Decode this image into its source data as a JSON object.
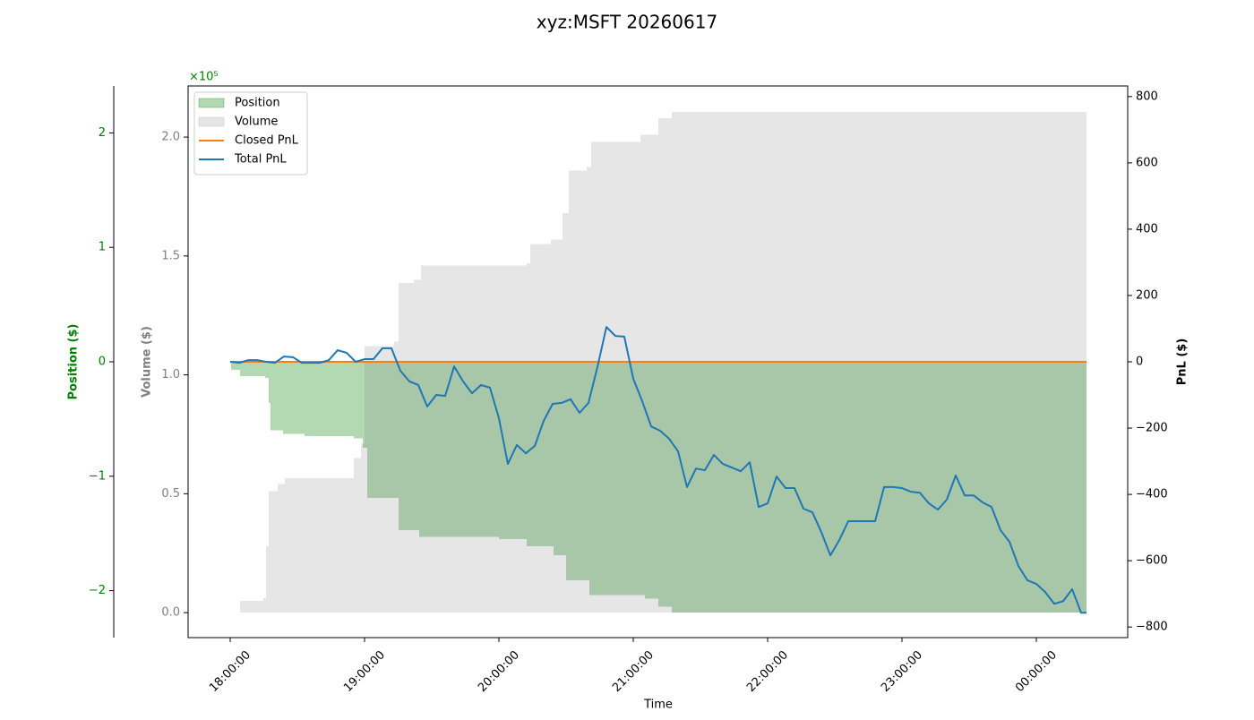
{
  "chart_data": {
    "type": "line",
    "title": "xyz:MSFT 20260617",
    "xlabel": "Time",
    "xlim": [
      "17:41:12",
      "00:40:48"
    ],
    "xticks": [
      "18:00:00",
      "19:00:00",
      "20:00:00",
      "21:00:00",
      "22:00:00",
      "23:00:00",
      "00:00:00"
    ],
    "ylabel": "Volume ($)",
    "ylabel_color": "gray",
    "ylim": [
      -0.105,
      2.215
    ],
    "yticks": [
      {
        "value": 0,
        "label": "0.0"
      },
      0.5,
      {
        "value": 1,
        "label": "1.0"
      },
      1.5,
      {
        "value": 2,
        "label": "2.0"
      }
    ],
    "y2label": "PnL ($)",
    "y2lim": [
      -832,
      832
    ],
    "y2ticks": [
      {
        "value": -800,
        "label": "−800"
      },
      {
        "value": -600,
        "label": "−600"
      },
      {
        "value": -400,
        "label": "−400"
      },
      {
        "value": -200,
        "label": "−200"
      },
      0,
      200,
      400,
      600,
      800
    ],
    "y3label": "Position ($)",
    "y3label_color": "green",
    "y3lim": [
      -2.41,
      2.41
    ],
    "y3ticks": [
      {
        "value": -2,
        "label": "−2"
      },
      {
        "value": -1,
        "label": "−1"
      },
      0,
      1,
      2
    ],
    "offset_text": "×10⁵",
    "legend": "upper left",
    "series": [
      {
        "name": "Position",
        "color": "green",
        "alpha": 0.3,
        "style": "step-area",
        "axis": "y3",
        "x": [
          "18:00:00",
          "18:00:24",
          "18:04:24",
          "18:15:36",
          "18:17:12",
          "18:18:00",
          "18:23:36",
          "18:33:12",
          "18:55:12",
          "18:59:12",
          "19:01:12",
          "19:15:12",
          "19:24:24",
          "20:00:00",
          "20:12:24",
          "20:24:24",
          "20:30:00",
          "20:40:24",
          "21:05:12",
          "21:11:12",
          "21:17:12",
          "00:22:24"
        ],
        "values": [
          0,
          -0.07,
          -0.125,
          -0.14,
          -0.36,
          -0.6,
          -0.63,
          -0.65,
          -0.67,
          -0.75,
          -1.19,
          -1.47,
          -1.53,
          -1.55,
          -1.61,
          -1.69,
          -1.91,
          -2.04,
          -2.07,
          -2.14,
          -2.19,
          -2.19
        ]
      },
      {
        "name": "Volume",
        "color": "gray",
        "alpha": 0.2,
        "style": "step-area",
        "axis": "y",
        "x": [
          "18:00:00",
          "18:04:24",
          "18:14:48",
          "18:16:00",
          "18:17:12",
          "18:21:12",
          "18:24:24",
          "18:55:12",
          "18:58:24",
          "19:00:00",
          "19:13:12",
          "19:15:12",
          "19:22:00",
          "19:25:12",
          "20:12:24",
          "20:14:00",
          "20:23:12",
          "20:28:24",
          "20:31:12",
          "20:39:12",
          "20:41:12",
          "21:03:12",
          "21:11:12",
          "21:17:12",
          "00:22:24"
        ],
        "values": [
          0,
          0.05,
          0.06,
          0.28,
          0.51,
          0.54,
          0.565,
          0.65,
          0.71,
          1.12,
          1.14,
          1.386,
          1.4,
          1.46,
          1.47,
          1.55,
          1.57,
          1.68,
          1.86,
          1.875,
          1.98,
          2.01,
          2.08,
          2.105,
          2.105
        ]
      },
      {
        "name": "Closed PnL",
        "color": "#ff7f0e",
        "style": "line",
        "axis": "y2",
        "x": [
          "18:00:00",
          "00:22:24"
        ],
        "values": [
          0,
          0
        ]
      },
      {
        "name": "Total PnL",
        "color": "#1f77b4",
        "style": "line",
        "axis": "y2",
        "x": [
          "18:00:00",
          "18:04:00",
          "18:08:00",
          "18:12:00",
          "18:16:00",
          "18:20:00",
          "18:24:00",
          "18:28:00",
          "18:32:00",
          "18:36:00",
          "18:40:00",
          "18:44:00",
          "18:48:00",
          "18:52:00",
          "18:56:00",
          "19:00:00",
          "19:04:00",
          "19:08:00",
          "19:12:00",
          "19:16:00",
          "19:20:00",
          "19:24:00",
          "19:28:00",
          "19:32:00",
          "19:36:00",
          "19:40:00",
          "19:44:00",
          "19:48:00",
          "19:52:00",
          "19:56:00",
          "20:00:00",
          "20:04:00",
          "20:08:00",
          "20:12:00",
          "20:16:00",
          "20:20:00",
          "20:24:00",
          "20:28:00",
          "20:32:00",
          "20:36:00",
          "20:40:00",
          "20:44:00",
          "20:48:00",
          "20:52:00",
          "20:56:00",
          "21:00:00",
          "21:04:00",
          "21:08:00",
          "21:12:00",
          "21:16:00",
          "21:20:00",
          "21:24:00",
          "21:28:00",
          "21:32:00",
          "21:36:00",
          "21:40:00",
          "21:44:00",
          "21:48:00",
          "21:52:00",
          "21:56:00",
          "22:00:00",
          "22:04:00",
          "22:08:00",
          "22:12:00",
          "22:16:00",
          "22:20:00",
          "22:24:00",
          "22:28:00",
          "22:32:00",
          "22:36:00",
          "22:40:00",
          "22:44:00",
          "22:48:00",
          "22:52:00",
          "22:56:00",
          "23:00:00",
          "23:04:00",
          "23:08:00",
          "23:12:00",
          "23:16:00",
          "23:20:00",
          "23:24:00",
          "23:28:00",
          "23:32:00",
          "23:36:00",
          "23:40:00",
          "23:44:00",
          "23:48:00",
          "23:52:00",
          "23:56:00",
          "00:00:00",
          "00:04:00",
          "00:08:00",
          "00:12:00",
          "00:16:00",
          "00:20:00",
          "00:22:24"
        ],
        "values": [
          0,
          -3,
          5,
          5,
          0,
          -3,
          16,
          14,
          -3,
          -3,
          -3,
          5,
          35,
          27,
          0,
          8,
          8,
          41,
          41,
          -27,
          -59,
          -70,
          -135,
          -100,
          -103,
          -14,
          -59,
          -95,
          -70,
          -78,
          -170,
          -308,
          -251,
          -276,
          -254,
          -178,
          -127,
          -124,
          -113,
          -154,
          -124,
          -16,
          105,
          78,
          76,
          -51,
          -119,
          -195,
          -208,
          -232,
          -270,
          -378,
          -322,
          -327,
          -281,
          -308,
          -319,
          -330,
          -303,
          -438,
          -427,
          -346,
          -381,
          -381,
          -443,
          -454,
          -514,
          -584,
          -538,
          -481,
          -481,
          -481,
          -481,
          -378,
          -378,
          -381,
          -392,
          -395,
          -427,
          -446,
          -416,
          -343,
          -403,
          -403,
          -424,
          -438,
          -508,
          -543,
          -616,
          -659,
          -670,
          -695,
          -730,
          -722,
          -686,
          -757,
          -757
        ]
      }
    ]
  }
}
